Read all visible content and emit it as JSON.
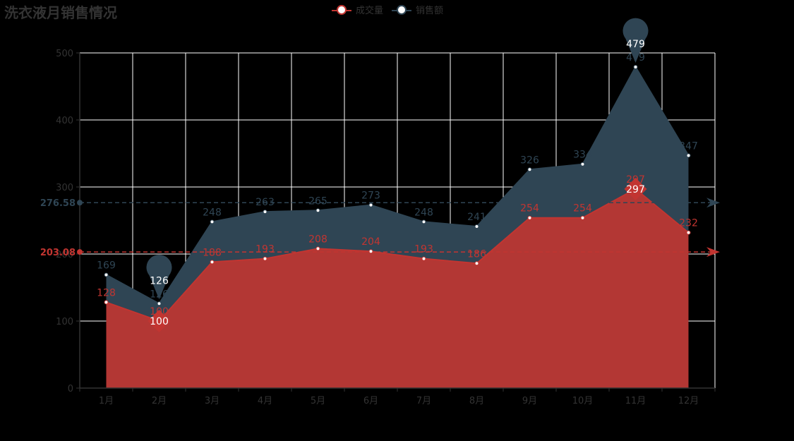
{
  "colors": {
    "trade": "#c23531",
    "sales": "#2f4554",
    "axis": "#333333",
    "grid": "#ffffff",
    "background": "#000000"
  },
  "chart_data": {
    "type": "area",
    "title": "洗衣液月销售情况",
    "categories": [
      "1月",
      "2月",
      "3月",
      "4月",
      "5月",
      "6月",
      "7月",
      "8月",
      "9月",
      "10月",
      "11月",
      "12月"
    ],
    "ylim": [
      0,
      500
    ],
    "yticks": [
      0,
      100,
      200,
      300,
      400,
      500
    ],
    "grid": true,
    "legend_position": "top-center",
    "series": [
      {
        "name": "成交量",
        "color": "#c23531",
        "values": [
          128,
          100,
          188,
          193,
          208,
          204,
          193,
          186,
          254,
          254,
          297,
          232
        ],
        "min": {
          "index": 1,
          "value": 100
        },
        "max": {
          "index": 10,
          "value": 297
        },
        "average": 203.08
      },
      {
        "name": "销售额",
        "color": "#2f4554",
        "values": [
          169,
          126,
          248,
          263,
          265,
          273,
          248,
          241,
          326,
          334,
          479,
          347
        ],
        "min": {
          "index": 1,
          "value": 126
        },
        "max": {
          "index": 10,
          "value": 479
        },
        "average": 276.58
      }
    ]
  }
}
